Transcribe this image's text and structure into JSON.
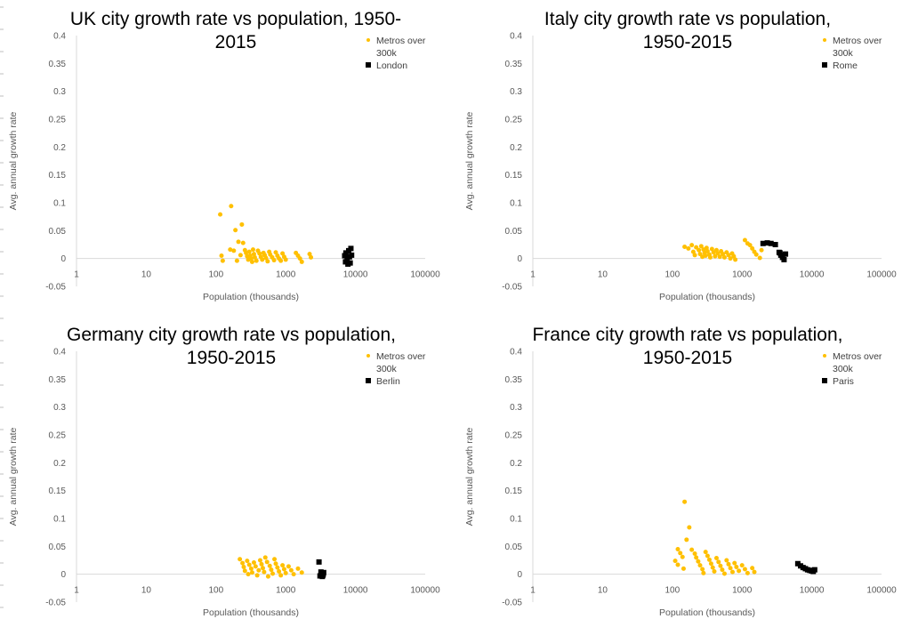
{
  "chart_data": [
    {
      "type": "scatter",
      "title_lines": [
        "UK city growth rate vs population, 1950-",
        "2015"
      ],
      "xlabel": "Population (thousands)",
      "ylabel": "Avg. annual growth rate",
      "xscale": "log",
      "xlim": [
        1,
        100000
      ],
      "ylim": [
        -0.05,
        0.4
      ],
      "xticks": [
        "1",
        "10",
        "100",
        "1000",
        "10000",
        "100000"
      ],
      "yticks": [
        "-0.05",
        "0",
        "0.05",
        "0.1",
        "0.15",
        "0.2",
        "0.25",
        "0.3",
        "0.35",
        "0.4"
      ],
      "legend_position": "top-right",
      "series": [
        {
          "name": "Metros over 300k",
          "legend_lines": [
            "Metros over",
            "300k"
          ],
          "color": "#FFC000",
          "marker": "circle",
          "points": [
            [
              115,
              0.079
            ],
            [
              165,
              0.094
            ],
            [
              190,
              0.051
            ],
            [
              210,
              0.03
            ],
            [
              235,
              0.061
            ],
            [
              245,
              0.028
            ],
            [
              160,
              0.016
            ],
            [
              180,
              0.014
            ],
            [
              120,
              0.005
            ],
            [
              125,
              -0.004
            ],
            [
              200,
              -0.004
            ],
            [
              225,
              0.006
            ],
            [
              260,
              0.015
            ],
            [
              270,
              0.01
            ],
            [
              280,
              0.004
            ],
            [
              290,
              -0.002
            ],
            [
              300,
              0.012
            ],
            [
              310,
              0.005
            ],
            [
              320,
              0.0
            ],
            [
              330,
              -0.006
            ],
            [
              340,
              0.016
            ],
            [
              350,
              0.008
            ],
            [
              360,
              0.002
            ],
            [
              380,
              -0.004
            ],
            [
              400,
              0.014
            ],
            [
              420,
              0.009
            ],
            [
              440,
              0.003
            ],
            [
              460,
              -0.002
            ],
            [
              480,
              0.01
            ],
            [
              500,
              0.006
            ],
            [
              520,
              0.001
            ],
            [
              550,
              -0.005
            ],
            [
              580,
              0.012
            ],
            [
              600,
              0.007
            ],
            [
              640,
              0.002
            ],
            [
              680,
              -0.003
            ],
            [
              720,
              0.011
            ],
            [
              760,
              0.005
            ],
            [
              800,
              0.0
            ],
            [
              850,
              -0.004
            ],
            [
              900,
              0.009
            ],
            [
              950,
              0.003
            ],
            [
              1000,
              -0.002
            ],
            [
              1400,
              0.01
            ],
            [
              1500,
              0.005
            ],
            [
              1600,
              0.0
            ],
            [
              1700,
              -0.006
            ],
            [
              2200,
              0.008
            ],
            [
              2300,
              0.002
            ]
          ]
        },
        {
          "name": "London",
          "legend_lines": [
            "London"
          ],
          "color": "#000000",
          "marker": "square",
          "points": [
            [
              7000,
              0.005
            ],
            [
              7300,
              0.01
            ],
            [
              7600,
              -0.002
            ],
            [
              7800,
              -0.01
            ],
            [
              8000,
              0.014
            ],
            [
              8200,
              0.003
            ],
            [
              8400,
              -0.008
            ],
            [
              8600,
              0.018
            ],
            [
              8800,
              0.006
            ],
            [
              7200,
              -0.006
            ]
          ]
        }
      ]
    },
    {
      "type": "scatter",
      "title_lines": [
        "Italy city growth rate vs population,",
        "1950-2015"
      ],
      "xlabel": "Population (thousands)",
      "ylabel": "Avg. annual growth rate",
      "xscale": "log",
      "xlim": [
        1,
        100000
      ],
      "ylim": [
        -0.05,
        0.4
      ],
      "xticks": [
        "1",
        "10",
        "100",
        "1000",
        "10000",
        "100000"
      ],
      "yticks": [
        "-0.05",
        "0",
        "0.05",
        "0.1",
        "0.15",
        "0.2",
        "0.25",
        "0.3",
        "0.35",
        "0.4"
      ],
      "legend_position": "top-right",
      "series": [
        {
          "name": "Metros over 300k",
          "legend_lines": [
            "Metros over",
            "300k"
          ],
          "color": "#FFC000",
          "marker": "circle",
          "points": [
            [
              150,
              0.021
            ],
            [
              170,
              0.018
            ],
            [
              190,
              0.024
            ],
            [
              200,
              0.012
            ],
            [
              210,
              0.006
            ],
            [
              220,
              0.02
            ],
            [
              240,
              0.015
            ],
            [
              250,
              0.008
            ],
            [
              260,
              0.022
            ],
            [
              270,
              0.003
            ],
            [
              280,
              0.016
            ],
            [
              290,
              0.01
            ],
            [
              300,
              0.005
            ],
            [
              310,
              0.019
            ],
            [
              320,
              0.013
            ],
            [
              340,
              0.007
            ],
            [
              350,
              0.002
            ],
            [
              370,
              0.017
            ],
            [
              390,
              0.011
            ],
            [
              410,
              0.004
            ],
            [
              430,
              0.015
            ],
            [
              450,
              0.009
            ],
            [
              480,
              0.003
            ],
            [
              500,
              0.013
            ],
            [
              530,
              0.008
            ],
            [
              560,
              0.002
            ],
            [
              600,
              0.011
            ],
            [
              640,
              0.006
            ],
            [
              680,
              0.0
            ],
            [
              720,
              0.009
            ],
            [
              760,
              0.004
            ],
            [
              800,
              -0.002
            ],
            [
              1100,
              0.033
            ],
            [
              1200,
              0.027
            ],
            [
              1300,
              0.024
            ],
            [
              1400,
              0.018
            ],
            [
              1500,
              0.012
            ],
            [
              1600,
              0.007
            ],
            [
              1800,
              0.001
            ],
            [
              1900,
              0.015
            ]
          ]
        },
        {
          "name": "Rome",
          "legend_lines": [
            "Rome"
          ],
          "color": "#000000",
          "marker": "square",
          "points": [
            [
              2000,
              0.027
            ],
            [
              2300,
              0.028
            ],
            [
              2600,
              0.027
            ],
            [
              3000,
              0.025
            ],
            [
              3400,
              0.011
            ],
            [
              3600,
              0.006
            ],
            [
              3800,
              0.002
            ],
            [
              4000,
              -0.002
            ],
            [
              3500,
              0.01
            ],
            [
              4200,
              0.008
            ]
          ]
        }
      ]
    },
    {
      "type": "scatter",
      "title_lines": [
        "Germany city growth rate vs population,",
        "1950-2015"
      ],
      "xlabel": "Population (thousands)",
      "ylabel": "Avg. annual growth rate",
      "xscale": "log",
      "xlim": [
        1,
        100000
      ],
      "ylim": [
        -0.05,
        0.4
      ],
      "xticks": [
        "1",
        "10",
        "100",
        "1000",
        "10000",
        "100000"
      ],
      "yticks": [
        "-0.05",
        "0",
        "0.05",
        "0.1",
        "0.15",
        "0.2",
        "0.25",
        "0.3",
        "0.35",
        "0.4"
      ],
      "legend_position": "top-right",
      "series": [
        {
          "name": "Metros over 300k",
          "legend_lines": [
            "Metros over",
            "300k"
          ],
          "color": "#FFC000",
          "marker": "circle",
          "points": [
            [
              220,
              0.027
            ],
            [
              240,
              0.02
            ],
            [
              250,
              0.013
            ],
            [
              260,
              0.006
            ],
            [
              280,
              0.024
            ],
            [
              290,
              0.0
            ],
            [
              300,
              0.017
            ],
            [
              320,
              0.01
            ],
            [
              330,
              0.003
            ],
            [
              350,
              0.021
            ],
            [
              370,
              0.014
            ],
            [
              390,
              -0.002
            ],
            [
              410,
              0.007
            ],
            [
              430,
              0.025
            ],
            [
              450,
              0.018
            ],
            [
              470,
              0.011
            ],
            [
              490,
              0.004
            ],
            [
              510,
              0.03
            ],
            [
              540,
              0.022
            ],
            [
              560,
              -0.004
            ],
            [
              590,
              0.015
            ],
            [
              620,
              0.008
            ],
            [
              650,
              0.001
            ],
            [
              690,
              0.027
            ],
            [
              720,
              0.019
            ],
            [
              760,
              0.012
            ],
            [
              800,
              0.005
            ],
            [
              850,
              -0.002
            ],
            [
              900,
              0.016
            ],
            [
              950,
              0.009
            ],
            [
              1000,
              0.002
            ],
            [
              1100,
              0.014
            ],
            [
              1200,
              0.007
            ],
            [
              1300,
              0.0
            ],
            [
              1500,
              0.01
            ],
            [
              1700,
              0.003
            ]
          ]
        },
        {
          "name": "Berlin",
          "legend_lines": [
            "Berlin"
          ],
          "color": "#000000",
          "marker": "square",
          "points": [
            [
              3000,
              0.022
            ],
            [
              3200,
              0.004
            ],
            [
              3300,
              0.001
            ],
            [
              3400,
              -0.002
            ],
            [
              3500,
              0.003
            ],
            [
              3100,
              -0.003
            ],
            [
              3450,
              0.0
            ],
            [
              3350,
              -0.004
            ]
          ]
        }
      ]
    },
    {
      "type": "scatter",
      "title_lines": [
        "France city growth rate vs population,",
        "1950-2015"
      ],
      "xlabel": "Population (thousands)",
      "ylabel": "Avg. annual growth rate",
      "xscale": "log",
      "xlim": [
        1,
        100000
      ],
      "ylim": [
        -0.05,
        0.4
      ],
      "xticks": [
        "1",
        "10",
        "100",
        "1000",
        "10000",
        "100000"
      ],
      "yticks": [
        "-0.05",
        "0",
        "0.05",
        "0.1",
        "0.15",
        "0.2",
        "0.25",
        "0.3",
        "0.35",
        "0.4"
      ],
      "legend_position": "top-right",
      "series": [
        {
          "name": "Metros over 300k",
          "legend_lines": [
            "Metros over",
            "300k"
          ],
          "color": "#FFC000",
          "marker": "circle",
          "points": [
            [
              150,
              0.13
            ],
            [
              175,
              0.084
            ],
            [
              160,
              0.062
            ],
            [
              120,
              0.045
            ],
            [
              130,
              0.038
            ],
            [
              140,
              0.031
            ],
            [
              110,
              0.024
            ],
            [
              120,
              0.017
            ],
            [
              145,
              0.01
            ],
            [
              190,
              0.044
            ],
            [
              210,
              0.037
            ],
            [
              220,
              0.03
            ],
            [
              235,
              0.023
            ],
            [
              250,
              0.016
            ],
            [
              270,
              0.009
            ],
            [
              280,
              0.002
            ],
            [
              300,
              0.04
            ],
            [
              320,
              0.033
            ],
            [
              340,
              0.026
            ],
            [
              360,
              0.019
            ],
            [
              380,
              0.012
            ],
            [
              400,
              0.005
            ],
            [
              430,
              0.029
            ],
            [
              460,
              0.022
            ],
            [
              490,
              0.015
            ],
            [
              520,
              0.008
            ],
            [
              560,
              0.001
            ],
            [
              600,
              0.025
            ],
            [
              640,
              0.018
            ],
            [
              680,
              0.011
            ],
            [
              730,
              0.004
            ],
            [
              780,
              0.02
            ],
            [
              830,
              0.013
            ],
            [
              900,
              0.006
            ],
            [
              1000,
              0.016
            ],
            [
              1100,
              0.009
            ],
            [
              1200,
              0.002
            ],
            [
              1400,
              0.011
            ],
            [
              1500,
              0.004
            ]
          ]
        },
        {
          "name": "Paris",
          "legend_lines": [
            "Paris"
          ],
          "color": "#000000",
          "marker": "square",
          "points": [
            [
              6300,
              0.019
            ],
            [
              6900,
              0.015
            ],
            [
              7500,
              0.012
            ],
            [
              8100,
              0.01
            ],
            [
              8700,
              0.008
            ],
            [
              9300,
              0.007
            ],
            [
              9900,
              0.006
            ],
            [
              10500,
              0.005
            ],
            [
              11000,
              0.008
            ]
          ]
        }
      ]
    }
  ]
}
